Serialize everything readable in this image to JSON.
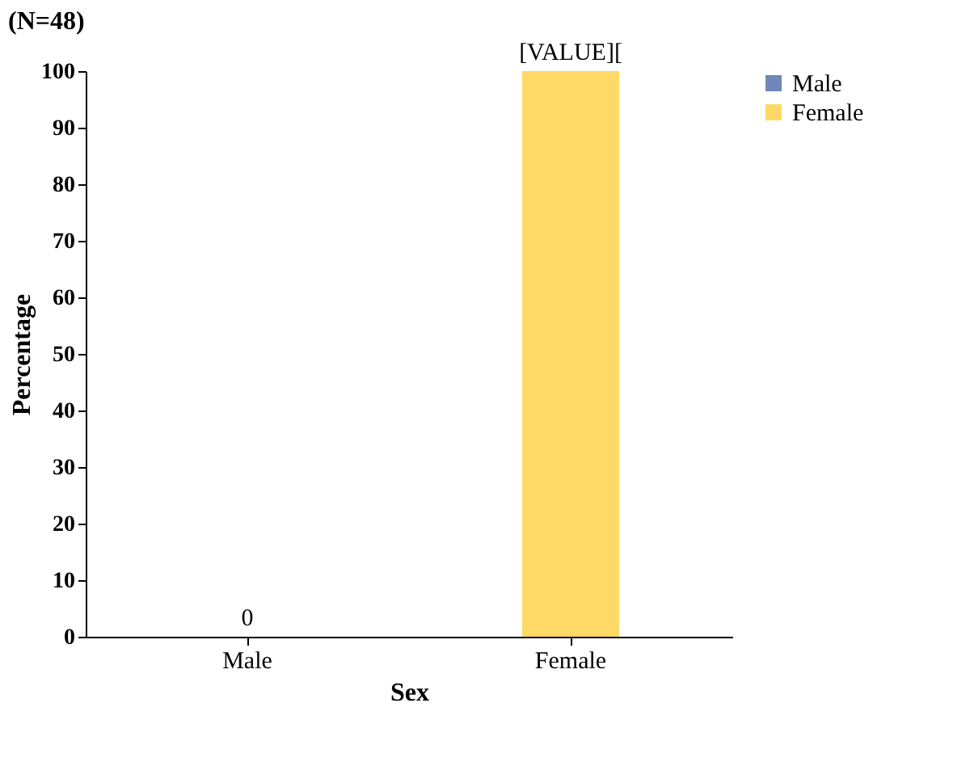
{
  "chart_data": {
    "type": "bar",
    "title": "(N=48)",
    "xlabel": "Sex",
    "ylabel": "Percentage",
    "categories": [
      "Male",
      "Female"
    ],
    "series": [
      {
        "name": "Male",
        "color": "#6f87b9",
        "values": [
          0,
          null
        ]
      },
      {
        "name": "Female",
        "color": "#ffd966",
        "values": [
          null,
          100
        ]
      }
    ],
    "value_labels": [
      "0",
      "[VALUE]["
    ],
    "ylim": [
      0,
      100
    ],
    "yticks": [
      0,
      10,
      20,
      30,
      40,
      50,
      60,
      70,
      80,
      90,
      100
    ],
    "grid": false,
    "legend": "right"
  }
}
